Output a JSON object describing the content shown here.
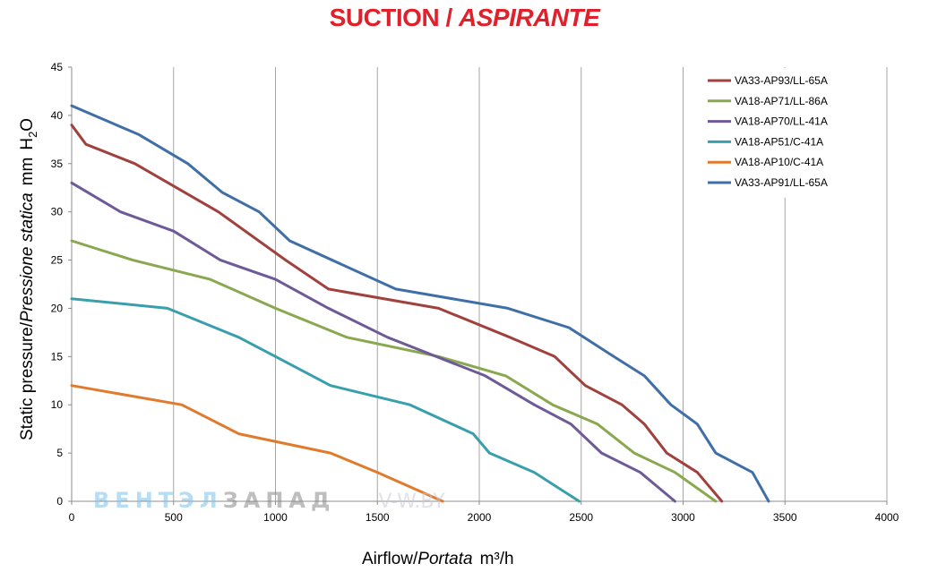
{
  "chart_data": {
    "type": "line",
    "title": "SUCTION / ASPIRANTE",
    "title_parts": [
      "SUCTION /",
      "ASPIRANTE"
    ],
    "xlabel_parts": [
      "Airflow/",
      "Portata",
      "m³/h"
    ],
    "ylabel_parts": [
      "Static pressure/",
      "Pressione statica",
      "mm",
      "H",
      "2",
      "O"
    ],
    "xlim": [
      0,
      4000
    ],
    "ylim": [
      0,
      45
    ],
    "xticks": [
      0,
      500,
      1000,
      1500,
      2000,
      2500,
      3000,
      3500,
      4000
    ],
    "yticks": [
      0,
      5,
      10,
      15,
      20,
      25,
      30,
      35,
      40,
      45
    ],
    "grid": "vertical",
    "legend_position": "top-right",
    "series": [
      {
        "name": "VA33-AP93/LL-65A",
        "color": "#a0413d",
        "x": [
          0,
          70,
          310,
          720,
          1050,
          1260,
          1800,
          2150,
          2370,
          2520,
          2700,
          2810,
          2920,
          3070,
          3190
        ],
        "y": [
          39,
          37,
          35,
          30,
          25,
          22,
          20,
          17,
          15,
          12,
          10,
          8,
          5,
          3,
          0
        ]
      },
      {
        "name": "VA18-AP71/LL-86A",
        "color": "#8aa84f",
        "x": [
          0,
          300,
          680,
          1000,
          1350,
          1800,
          2130,
          2360,
          2580,
          2760,
          2960,
          3160
        ],
        "y": [
          27,
          25,
          23,
          20,
          17,
          15,
          13,
          10,
          8,
          5,
          3,
          0
        ]
      },
      {
        "name": "VA18-AP70/LL-41A",
        "color": "#6d5a97",
        "x": [
          0,
          240,
          500,
          730,
          1000,
          1260,
          1550,
          2030,
          2270,
          2450,
          2600,
          2790,
          2960
        ],
        "y": [
          33,
          30,
          28,
          25,
          23,
          20,
          17,
          13,
          10,
          8,
          5,
          3,
          0
        ]
      },
      {
        "name": "VA18-AP51/C-41A",
        "color": "#3a9fac",
        "x": [
          0,
          470,
          820,
          1000,
          1270,
          1660,
          1970,
          2050,
          2270,
          2490
        ],
        "y": [
          21,
          20,
          17,
          15,
          12,
          10,
          7,
          5,
          3,
          0
        ]
      },
      {
        "name": "VA18-AP10/C-41A",
        "color": "#e07b2e",
        "x": [
          0,
          540,
          820,
          1270,
          1500,
          1820
        ],
        "y": [
          12,
          10,
          7,
          5,
          3,
          0
        ]
      },
      {
        "name": "VA33-AP91/LL-65A",
        "color": "#3f6fa6",
        "x": [
          0,
          110,
          330,
          570,
          740,
          920,
          1070,
          1590,
          2140,
          2440,
          2660,
          2810,
          2940,
          3070,
          3160,
          3340,
          3420
        ],
        "y": [
          41,
          40,
          38,
          35,
          32,
          30,
          27,
          22,
          20,
          18,
          15,
          13,
          10,
          8,
          5,
          3,
          0
        ]
      }
    ]
  },
  "watermark": {
    "part1": "ВЕНТЭЛ",
    "part2": "ЗАПАД",
    "part3": "V-W.BY"
  }
}
